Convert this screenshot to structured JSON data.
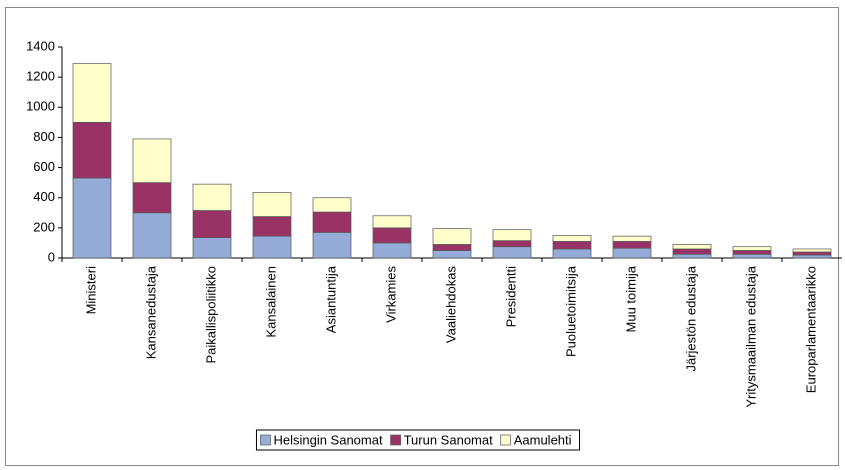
{
  "chart_data": {
    "type": "bar",
    "stacked": true,
    "categories": [
      "Ministeri",
      "Kansanedustaja",
      "Paikallispoliitikko",
      "Kansalainen",
      "Asiantuntija",
      "Virkamies",
      "Vaaliehdokas",
      "Presidentti",
      "Puoluetoimitsija",
      "Muu toimija",
      "Järjestön edustaja",
      "Yritysmaailman edustaja",
      "Europarlamentaarikko"
    ],
    "series": [
      {
        "name": "Helsingin Sanomat",
        "color": "#95acd8",
        "values": [
          530,
          300,
          135,
          145,
          170,
          100,
          50,
          75,
          60,
          65,
          25,
          25,
          20
        ]
      },
      {
        "name": "Turun Sanomat",
        "color": "#993366",
        "values": [
          370,
          200,
          180,
          130,
          135,
          100,
          40,
          40,
          50,
          45,
          35,
          25,
          20
        ]
      },
      {
        "name": "Aamulehti",
        "color": "#ffffcc",
        "values": [
          390,
          290,
          175,
          160,
          95,
          80,
          105,
          75,
          40,
          35,
          30,
          25,
          20
        ]
      }
    ],
    "ylim": [
      0,
      1400
    ],
    "yticks": [
      0,
      200,
      400,
      600,
      800,
      1000,
      1200,
      1400
    ],
    "legend": "bottom"
  }
}
